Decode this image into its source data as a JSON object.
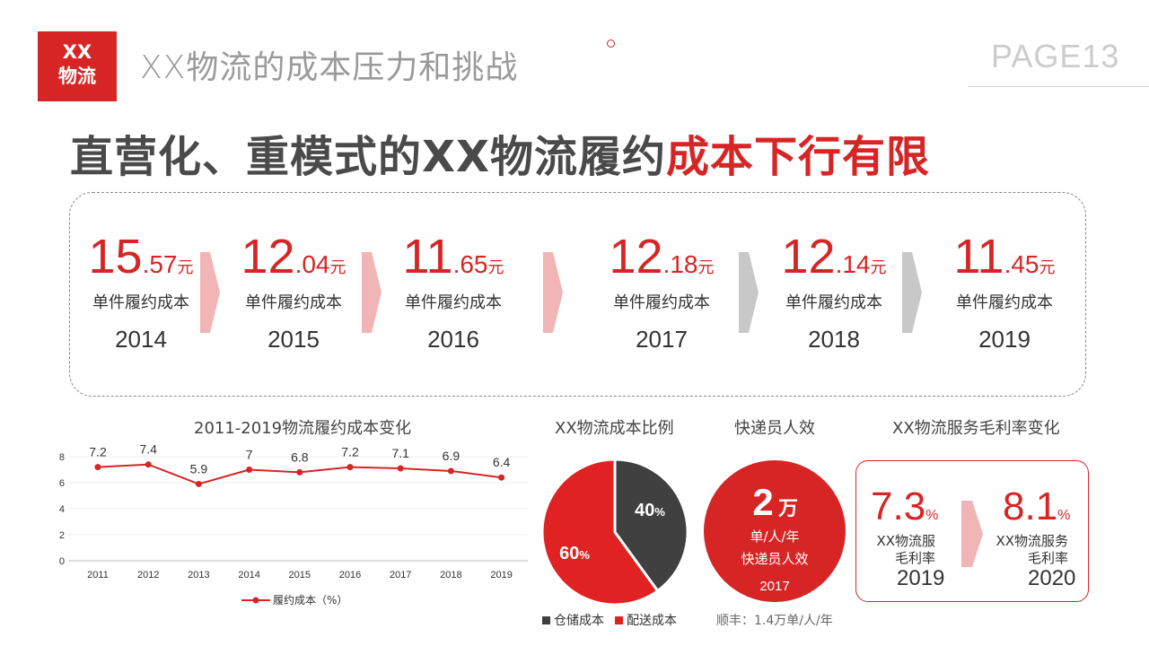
{
  "header": {
    "logo_line1": "XX",
    "logo_line2": "物流",
    "title": "XX物流的成本压力和挑战",
    "page": "PAGE13"
  },
  "headline": {
    "dark_part": "直营化、重模式的XX物流履约",
    "red_part": "成本下行有限"
  },
  "cost_timeline": {
    "label": "单件履约成本",
    "unit": "元",
    "items": [
      {
        "int": "15",
        "dec": ".57",
        "year": "2014"
      },
      {
        "int": "12",
        "dec": ".04",
        "year": "2015"
      },
      {
        "int": "11",
        "dec": ".65",
        "year": "2016"
      },
      {
        "int": "12",
        "dec": ".18",
        "year": "2017"
      },
      {
        "int": "12",
        "dec": ".14",
        "year": "2018"
      },
      {
        "int": "11",
        "dec": ".45",
        "year": "2019"
      }
    ],
    "arrow_colors": [
      "#f2b5b5",
      "#f2b5b5",
      "#f2b5b5",
      "#c8c8c8",
      "#c8c8c8"
    ]
  },
  "line_chart_title": "2011-2019物流履约成本变化",
  "pie_title": "XX物流成本比例",
  "efficiency": {
    "title": "快递员人效",
    "value": "2",
    "unit": "万",
    "per": "单/人/年",
    "label": "快递员人效",
    "year": "2017",
    "note": "顺丰：1.4万单/人/年"
  },
  "gross_margin": {
    "title": "XX物流服务毛利率变化",
    "items": [
      {
        "value": "7.3",
        "pct": "%",
        "label_line1": "XX物流服",
        "label_line2": "毛利率",
        "year": "2019"
      },
      {
        "value": "8.1",
        "pct": "%",
        "label_line1": "XX物流服务",
        "label_line2": "毛利率",
        "year": "2020"
      }
    ]
  },
  "chart_data": [
    {
      "type": "line",
      "title": "2011-2019物流履约成本变化",
      "categories": [
        "2011",
        "2012",
        "2013",
        "2014",
        "2015",
        "2016",
        "2017",
        "2018",
        "2019"
      ],
      "series": [
        {
          "name": "履约成本（%）",
          "values": [
            7.2,
            7.4,
            5.9,
            7,
            6.8,
            7.2,
            7.1,
            6.9,
            6.4
          ],
          "labels": [
            "7.2",
            "7.4",
            "5.9",
            "7",
            "6.8",
            "7.2",
            "7.1",
            "6.9",
            "6.4"
          ]
        }
      ],
      "yticks": [
        "0",
        "2",
        "4",
        "6",
        "8"
      ],
      "ylim": [
        0,
        8
      ],
      "color": "#d72526",
      "grid": true,
      "legend": "bottom"
    },
    {
      "type": "pie",
      "title": "XX物流成本比例",
      "slices": [
        {
          "name": "仓储成本",
          "value": 40,
          "label": "40",
          "pct": "%",
          "color": "#404040"
        },
        {
          "name": "配送成本",
          "value": 60,
          "label": "60",
          "pct": "%",
          "color": "#e12222"
        }
      ],
      "legend": "bottom"
    }
  ]
}
